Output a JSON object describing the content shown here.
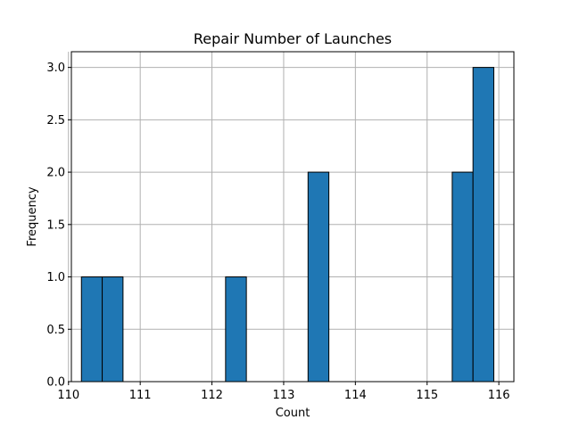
{
  "chart_data": {
    "type": "bar",
    "title": "Repair Number of Launches",
    "xlabel": "Count",
    "ylabel": "Frequency",
    "bins": [
      {
        "x0": 110.18,
        "x1": 110.47,
        "value": 1
      },
      {
        "x0": 110.47,
        "x1": 110.76,
        "value": 1
      },
      {
        "x0": 112.19,
        "x1": 112.48,
        "value": 1
      },
      {
        "x0": 113.34,
        "x1": 113.63,
        "value": 2
      },
      {
        "x0": 115.35,
        "x1": 115.64,
        "value": 2
      },
      {
        "x0": 115.64,
        "x1": 115.93,
        "value": 3
      }
    ],
    "xlim": [
      110.04,
      116.21
    ],
    "ylim": [
      0,
      3.15
    ],
    "xticks": [
      "110",
      "111",
      "112",
      "113",
      "114",
      "115",
      "116"
    ],
    "xtick_values": [
      110,
      111,
      112,
      113,
      114,
      115,
      116
    ],
    "yticks": [
      "0.0",
      "0.5",
      "1.0",
      "1.5",
      "2.0",
      "2.5",
      "3.0"
    ],
    "ytick_values": [
      0,
      0.5,
      1.0,
      1.5,
      2.0,
      2.5,
      3.0
    ],
    "grid": true,
    "colors": {
      "bar_fill": "#1f77b4",
      "bar_edge": "#000000",
      "grid": "#b0b0b0"
    }
  }
}
